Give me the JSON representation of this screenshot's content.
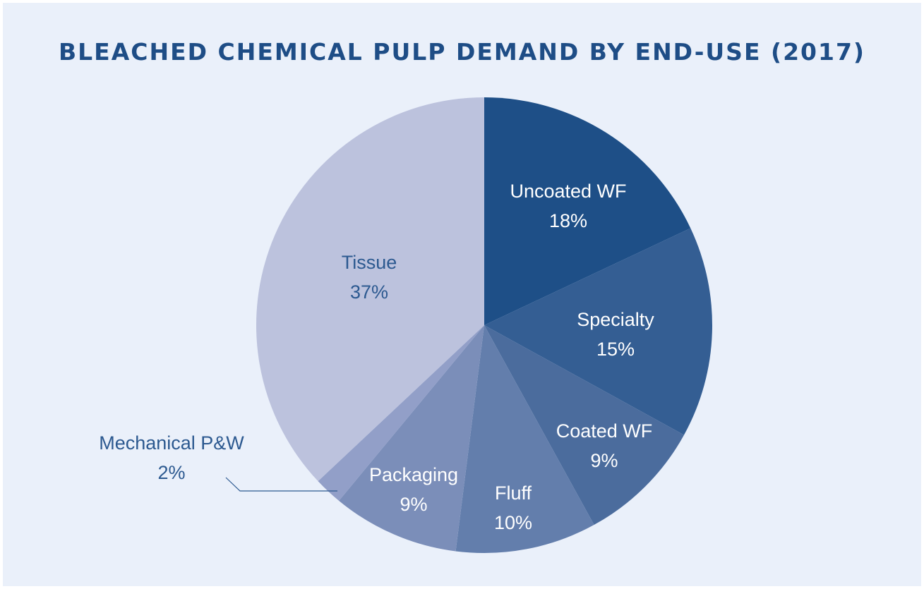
{
  "chart_data": {
    "type": "pie",
    "title": "BLEACHED CHEMICAL PULP DEMAND BY END-USE (2017)",
    "slices": [
      {
        "label": "Uncoated WF",
        "value_label": "18%",
        "value": 18,
        "color": "#1e4f87"
      },
      {
        "label": "Specialty",
        "value_label": "15%",
        "value": 15,
        "color": "#345e93"
      },
      {
        "label": "Coated WF",
        "value_label": "9%",
        "value": 9,
        "color": "#4b6c9d"
      },
      {
        "label": "Fluff",
        "value_label": "10%",
        "value": 10,
        "color": "#637eac"
      },
      {
        "label": "Packaging",
        "value_label": "9%",
        "value": 9,
        "color": "#7b8eb9"
      },
      {
        "label": "Mechanical P&W",
        "value_label": "2%",
        "value": 2,
        "color": "#929fc8"
      },
      {
        "label": "Tissue",
        "value_label": "37%",
        "value": 37,
        "color": "#bcc2dd"
      }
    ],
    "start_angle_deg": 0,
    "direction": "clockwise",
    "legend": "none"
  }
}
